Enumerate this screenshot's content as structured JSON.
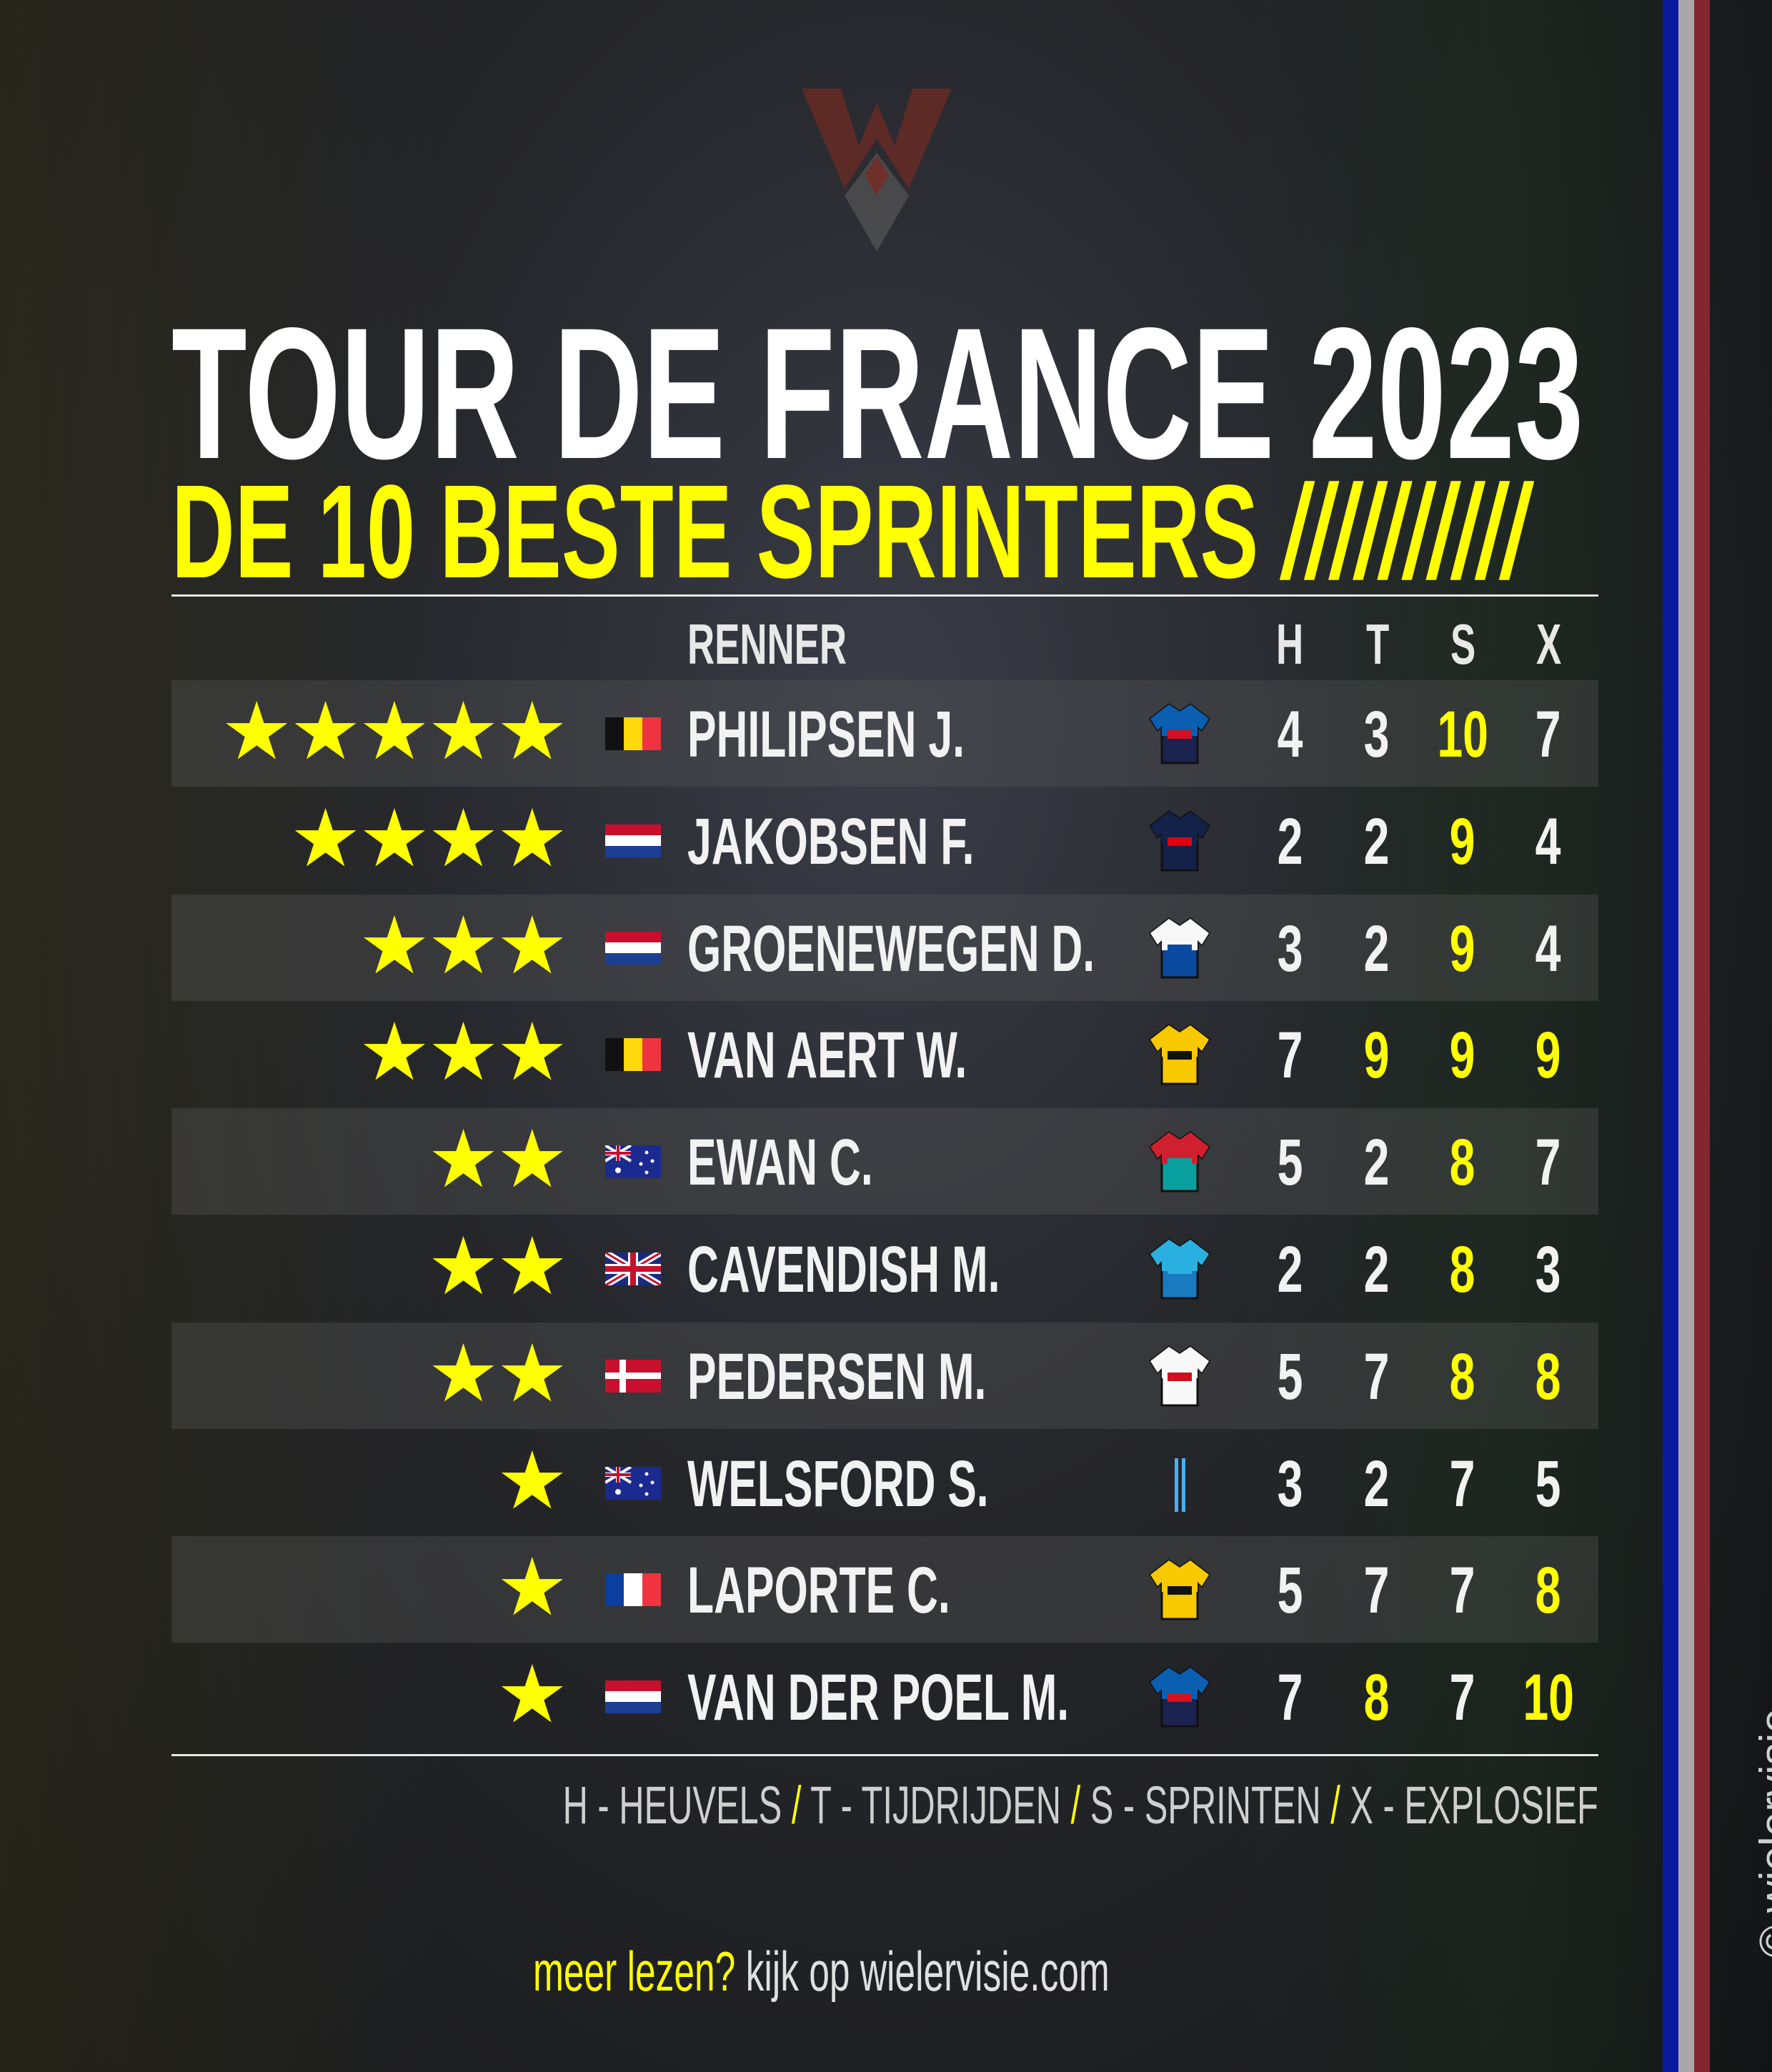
{
  "logo": {
    "text": "WV",
    "colors": [
      "#7a2a22",
      "#5a5a5a"
    ]
  },
  "title": "TOUR DE FRANCE 2023",
  "subtitle": "DE 10 BESTE SPRINTERS",
  "subtitle_slashes": "//////////",
  "columns": {
    "rider": "RENNER",
    "h": "H",
    "t": "T",
    "s": "S",
    "x": "X"
  },
  "highlight_color": "#ffff00",
  "riders": [
    {
      "stars": 5,
      "flag": "belgium",
      "name": "PHILIPSEN J.",
      "jersey": [
        "#0b5fb0",
        "#1b2350",
        "#d51020"
      ],
      "h": 4,
      "t": 3,
      "s": 10,
      "x": 7
    },
    {
      "stars": 4,
      "flag": "netherlands",
      "name": "JAKOBSEN F.",
      "jersey": [
        "#14224a",
        "#14224a",
        "#e00010"
      ],
      "h": 2,
      "t": 2,
      "s": 9,
      "x": 4
    },
    {
      "stars": 3,
      "flag": "netherlands",
      "name": "GROENEWEGEN D.",
      "jersey": [
        "#f8f8f8",
        "#0c4aa0",
        "#0c4aa0"
      ],
      "h": 3,
      "t": 2,
      "s": 9,
      "x": 4
    },
    {
      "stars": 3,
      "flag": "belgium",
      "name": "VAN AERT W.",
      "jersey": [
        "#f8c800",
        "#f8c800",
        "#111111"
      ],
      "h": 7,
      "t": 9,
      "s": 9,
      "x": 9
    },
    {
      "stars": 2,
      "flag": "australia",
      "name": "EWAN C.",
      "jersey": [
        "#d02030",
        "#0aa0a0",
        "#0aa0a0"
      ],
      "h": 5,
      "t": 2,
      "s": 8,
      "x": 7
    },
    {
      "stars": 2,
      "flag": "united-kingdom",
      "name": "CAVENDISH M.",
      "jersey": [
        "#2ab0e0",
        "#1a7ac0",
        "#2ab0e0"
      ],
      "h": 2,
      "t": 2,
      "s": 8,
      "x": 3
    },
    {
      "stars": 2,
      "flag": "denmark",
      "name": "PEDERSEN M.",
      "jersey": [
        "#f8f8f8",
        "#f8f8f8",
        "#d01020"
      ],
      "h": 5,
      "t": 7,
      "s": 8,
      "x": 8
    },
    {
      "stars": 1,
      "flag": "australia",
      "name": "WELSFORD S.",
      "jersey": [
        "none",
        "none",
        "#4ab0f0"
      ],
      "h": 3,
      "t": 2,
      "s": 7,
      "x": 5
    },
    {
      "stars": 1,
      "flag": "france",
      "name": "LAPORTE C.",
      "jersey": [
        "#f8c800",
        "#f8c800",
        "#111111"
      ],
      "h": 5,
      "t": 7,
      "s": 7,
      "x": 8
    },
    {
      "stars": 1,
      "flag": "netherlands",
      "name": "VAN DER POEL M.",
      "jersey": [
        "#0b5fb0",
        "#1b2350",
        "#d51020"
      ],
      "h": 7,
      "t": 8,
      "s": 7,
      "x": 10
    }
  ],
  "legend": [
    {
      "text": "H - HEUVELS",
      "sep": " / "
    },
    {
      "text": "T - TIJDRIJDEN",
      "sep": " / "
    },
    {
      "text": "S - SPRINTEN",
      "sep": " / "
    },
    {
      "text": "X - EXPLOSIEF",
      "sep": ""
    }
  ],
  "footer": {
    "prompt": "meer lezen?",
    "text": " kijk op wielervisie.com"
  },
  "credit": "© wielervisie",
  "side_stripe_colors": [
    "#0a1aa0",
    "#a8a8a8",
    "#832630"
  ]
}
